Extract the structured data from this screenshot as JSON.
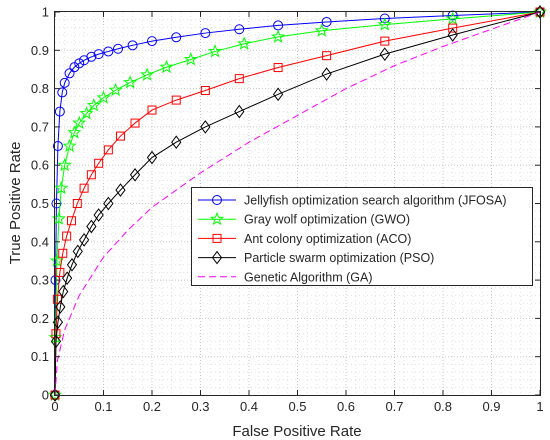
{
  "chart_data": {
    "type": "line",
    "xlabel": "False Positive Rate",
    "ylabel": "True Positive Rate",
    "xlim": [
      0,
      1
    ],
    "ylim": [
      0,
      1
    ],
    "xticks": [
      "0",
      "0.1",
      "0.2",
      "0.3",
      "0.4",
      "0.5",
      "0.6",
      "0.7",
      "0.8",
      "0.9",
      "1"
    ],
    "yticks": [
      "0",
      "0.1",
      "0.2",
      "0.3",
      "0.4",
      "0.5",
      "0.6",
      "0.7",
      "0.8",
      "0.9",
      "1"
    ],
    "grid": true,
    "legend_position": "center-right",
    "series": [
      {
        "name": "Jellyfish optimization search algorithm (JFOSA)",
        "color": "#0000ff",
        "marker": "circle",
        "points": [
          [
            0,
            0
          ],
          [
            0.001,
            0.3
          ],
          [
            0.003,
            0.5
          ],
          [
            0.006,
            0.65
          ],
          [
            0.01,
            0.74
          ],
          [
            0.015,
            0.79
          ],
          [
            0.02,
            0.815
          ],
          [
            0.03,
            0.84
          ],
          [
            0.04,
            0.856
          ],
          [
            0.05,
            0.866
          ],
          [
            0.06,
            0.874
          ],
          [
            0.075,
            0.883
          ],
          [
            0.09,
            0.89
          ],
          [
            0.11,
            0.897
          ],
          [
            0.13,
            0.904
          ],
          [
            0.16,
            0.913
          ],
          [
            0.2,
            0.924
          ],
          [
            0.25,
            0.934
          ],
          [
            0.31,
            0.945
          ],
          [
            0.38,
            0.955
          ],
          [
            0.46,
            0.965
          ],
          [
            0.56,
            0.974
          ],
          [
            0.68,
            0.983
          ],
          [
            0.82,
            0.991
          ],
          [
            1,
            1
          ]
        ]
      },
      {
        "name": "Gray wolf optimization (GWO)",
        "color": "#00ff00",
        "marker": "star",
        "points": [
          [
            0,
            0
          ],
          [
            0.001,
            0.15
          ],
          [
            0.004,
            0.35
          ],
          [
            0.008,
            0.46
          ],
          [
            0.013,
            0.54
          ],
          [
            0.02,
            0.6
          ],
          [
            0.03,
            0.65
          ],
          [
            0.04,
            0.685
          ],
          [
            0.05,
            0.71
          ],
          [
            0.065,
            0.735
          ],
          [
            0.08,
            0.756
          ],
          [
            0.1,
            0.776
          ],
          [
            0.125,
            0.796
          ],
          [
            0.155,
            0.816
          ],
          [
            0.19,
            0.836
          ],
          [
            0.23,
            0.856
          ],
          [
            0.28,
            0.876
          ],
          [
            0.33,
            0.897
          ],
          [
            0.39,
            0.917
          ],
          [
            0.46,
            0.935
          ],
          [
            0.55,
            0.951
          ],
          [
            0.68,
            0.967
          ],
          [
            0.82,
            0.982
          ],
          [
            1,
            1
          ]
        ]
      },
      {
        "name": "Ant colony optimization (ACO)",
        "color": "#ff0000",
        "marker": "square",
        "points": [
          [
            0,
            0
          ],
          [
            0.002,
            0.16
          ],
          [
            0.005,
            0.25
          ],
          [
            0.01,
            0.32
          ],
          [
            0.016,
            0.37
          ],
          [
            0.024,
            0.415
          ],
          [
            0.034,
            0.455
          ],
          [
            0.046,
            0.5
          ],
          [
            0.06,
            0.54
          ],
          [
            0.075,
            0.575
          ],
          [
            0.09,
            0.605
          ],
          [
            0.11,
            0.64
          ],
          [
            0.135,
            0.676
          ],
          [
            0.165,
            0.71
          ],
          [
            0.2,
            0.744
          ],
          [
            0.25,
            0.77
          ],
          [
            0.31,
            0.795
          ],
          [
            0.38,
            0.826
          ],
          [
            0.46,
            0.855
          ],
          [
            0.56,
            0.886
          ],
          [
            0.68,
            0.924
          ],
          [
            0.82,
            0.958
          ],
          [
            1,
            1
          ]
        ]
      },
      {
        "name": "Particle swarm optimization (PSO)",
        "color": "#000000",
        "marker": "diamond",
        "points": [
          [
            0,
            0
          ],
          [
            0.002,
            0.14
          ],
          [
            0.006,
            0.19
          ],
          [
            0.011,
            0.23
          ],
          [
            0.017,
            0.27
          ],
          [
            0.025,
            0.305
          ],
          [
            0.035,
            0.34
          ],
          [
            0.047,
            0.375
          ],
          [
            0.06,
            0.405
          ],
          [
            0.075,
            0.44
          ],
          [
            0.09,
            0.47
          ],
          [
            0.11,
            0.5
          ],
          [
            0.135,
            0.535
          ],
          [
            0.165,
            0.575
          ],
          [
            0.2,
            0.62
          ],
          [
            0.25,
            0.66
          ],
          [
            0.31,
            0.7
          ],
          [
            0.38,
            0.74
          ],
          [
            0.46,
            0.785
          ],
          [
            0.56,
            0.838
          ],
          [
            0.68,
            0.89
          ],
          [
            0.82,
            0.94
          ],
          [
            1,
            1
          ]
        ]
      },
      {
        "name": "Genetic Algorithm (GA)",
        "color": "#ff00ff",
        "marker": "none",
        "dashed": true,
        "points": [
          [
            0,
            0
          ],
          [
            0.005,
            0.09
          ],
          [
            0.02,
            0.17
          ],
          [
            0.05,
            0.26
          ],
          [
            0.1,
            0.36
          ],
          [
            0.15,
            0.43
          ],
          [
            0.2,
            0.49
          ],
          [
            0.3,
            0.58
          ],
          [
            0.4,
            0.66
          ],
          [
            0.5,
            0.73
          ],
          [
            0.6,
            0.8
          ],
          [
            0.7,
            0.86
          ],
          [
            0.8,
            0.91
          ],
          [
            0.9,
            0.955
          ],
          [
            1,
            1
          ]
        ]
      }
    ]
  }
}
